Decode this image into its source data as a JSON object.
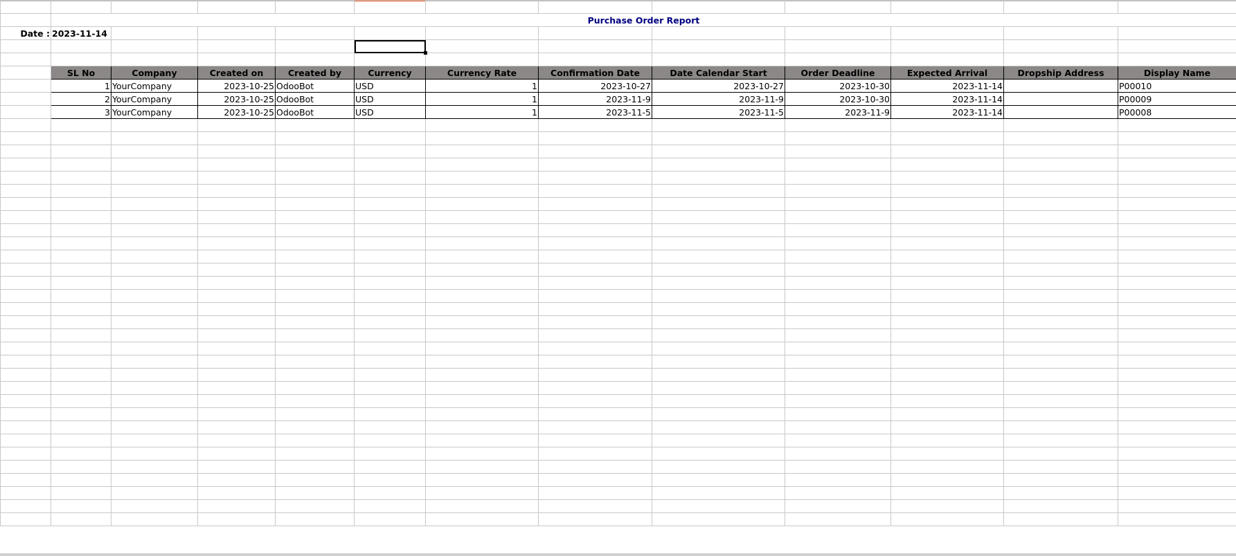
{
  "report": {
    "title": "Purchase Order Report",
    "date_label": "Date :",
    "date_value": "2023-11-14"
  },
  "table": {
    "headers": [
      "SL No",
      "Company",
      "Created on",
      "Created by",
      "Currency",
      "Currency Rate",
      "Confirmation Date",
      "Date Calendar Start",
      "Order Deadline",
      "Expected Arrival",
      "Dropship Address",
      "Display Name"
    ],
    "rows": [
      [
        "1",
        "YourCompany",
        "2023-10-25",
        "OdooBot",
        "USD",
        "1",
        "2023-10-27",
        "2023-10-27",
        "2023-10-30",
        "2023-11-14",
        "",
        "P00010"
      ],
      [
        "2",
        "YourCompany",
        "2023-10-25",
        "OdooBot",
        "USD",
        "1",
        "2023-11-9",
        "2023-11-9",
        "2023-10-30",
        "2023-11-14",
        "",
        "P00009"
      ],
      [
        "3",
        "YourCompany",
        "2023-10-25",
        "OdooBot",
        "USD",
        "1",
        "2023-11-5",
        "2023-11-5",
        "2023-11-9",
        "2023-11-14",
        "",
        "P00008"
      ]
    ]
  },
  "colors": {
    "title": "#000080",
    "header_bg": "#8c8887",
    "selection_marker": "#e8501c"
  }
}
